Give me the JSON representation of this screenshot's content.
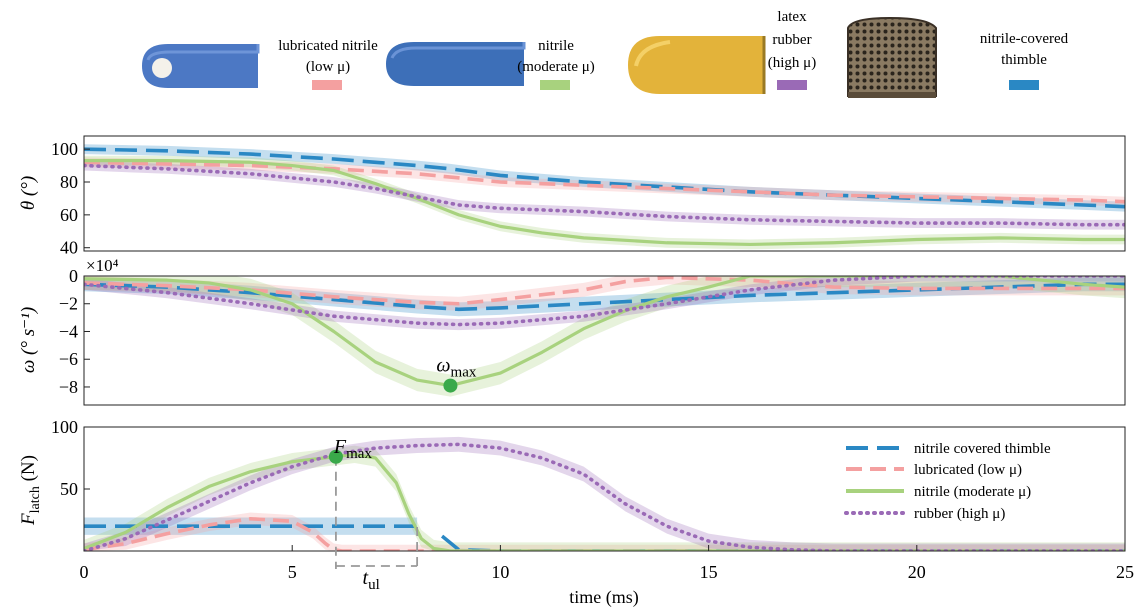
{
  "header": {
    "items": [
      {
        "line1": "lubricated nitrile",
        "line2": "(low μ)",
        "color": "#f4a0a0",
        "icon": "lubricated-nitrile-fingercot-icon"
      },
      {
        "line1": "nitrile",
        "line2": "(moderate μ)",
        "color": "#a8d27e",
        "icon": "nitrile-fingercot-icon"
      },
      {
        "line1": "latex",
        "line2": "rubber",
        "line3": "(high μ)",
        "color": "#9a6ab6",
        "icon": "latex-fingercot-icon"
      },
      {
        "line1": "nitrile-covered",
        "line2": "thimble",
        "color": "#2a88c4",
        "icon": "thimble-icon"
      }
    ]
  },
  "colors": {
    "thimble": "#2a88c4",
    "lubricated": "#f4a0a0",
    "nitrile": "#a8d27e",
    "rubber": "#9a6ab6"
  },
  "chart_data": [
    {
      "type": "line",
      "ylabel": "θ (°)",
      "xlim": [
        0,
        25
      ],
      "ylim": [
        38,
        108
      ],
      "yticks": [
        40,
        60,
        80,
        100
      ],
      "series": [
        {
          "key": "thimble",
          "x": [
            0,
            2,
            4,
            6,
            8,
            8.8,
            10,
            12,
            14,
            16,
            18,
            20,
            22,
            24,
            25
          ],
          "y": [
            100,
            99,
            97,
            94,
            90,
            88,
            84,
            80,
            77,
            74,
            72,
            70,
            68,
            66,
            65
          ],
          "band": 3
        },
        {
          "key": "lubricated",
          "x": [
            0,
            2,
            4,
            6,
            8,
            10,
            12,
            14,
            16,
            18,
            20,
            22,
            24,
            25
          ],
          "y": [
            92,
            91,
            90,
            88,
            85,
            80,
            78,
            76,
            74,
            72,
            71,
            70,
            69,
            68
          ],
          "band": 3
        },
        {
          "key": "nitrile",
          "x": [
            0,
            2,
            4,
            5,
            6,
            7,
            8,
            9,
            10,
            11,
            12,
            14,
            16,
            18,
            20,
            22,
            24,
            25
          ],
          "y": [
            93,
            93,
            92,
            90,
            87,
            79,
            70,
            60,
            53,
            49,
            46,
            43,
            42,
            43,
            45,
            46,
            45,
            45
          ],
          "band": 3
        },
        {
          "key": "rubber",
          "x": [
            0,
            2,
            4,
            6,
            7,
            8,
            9,
            10,
            11,
            12,
            14,
            16,
            18,
            20,
            22,
            24,
            25
          ],
          "y": [
            90,
            88,
            85,
            80,
            76,
            71,
            66,
            64,
            63,
            62,
            59,
            57,
            56,
            55,
            55,
            54,
            54
          ],
          "band": 3
        }
      ]
    },
    {
      "type": "line",
      "ylabel": "ω (° s⁻¹)",
      "scale_label": "×10⁴",
      "xlim": [
        0,
        25
      ],
      "ylim": [
        -9.3,
        0
      ],
      "yticks": [
        0,
        -2,
        -4,
        -6,
        -8
      ],
      "annotation": {
        "label": "ω",
        "sub": "max",
        "x": 8.8,
        "y": -7.9
      },
      "series": [
        {
          "key": "thimble",
          "x": [
            0,
            2,
            4,
            6,
            8,
            9,
            10,
            12,
            14,
            16,
            18,
            20,
            22,
            24,
            25
          ],
          "y": [
            -0.6,
            -0.8,
            -1.2,
            -1.7,
            -2.2,
            -2.4,
            -2.3,
            -2.0,
            -1.7,
            -1.4,
            -1.2,
            -1.0,
            -0.8,
            -0.6,
            -0.6
          ],
          "band": 0.5
        },
        {
          "key": "lubricated",
          "x": [
            0,
            2,
            4,
            6,
            8,
            9,
            10,
            12,
            13,
            14,
            16,
            18,
            20,
            22,
            24,
            25
          ],
          "y": [
            -0.5,
            -0.7,
            -1.0,
            -1.5,
            -1.9,
            -2.0,
            -1.7,
            -1.0,
            -0.4,
            -0.1,
            -0.3,
            -0.8,
            -0.9,
            -0.9,
            -0.9,
            -0.9
          ],
          "band": 0.5
        },
        {
          "key": "nitrile",
          "x": [
            0,
            2,
            3,
            4,
            5,
            6,
            7,
            8,
            8.8,
            10,
            11,
            12,
            13,
            14,
            15,
            16,
            18,
            20,
            22,
            24,
            25
          ],
          "y": [
            -0.2,
            -0.3,
            -0.5,
            -1.0,
            -2.0,
            -4.0,
            -6.2,
            -7.5,
            -7.9,
            -7.0,
            -5.5,
            -3.8,
            -2.5,
            -1.5,
            -0.8,
            0,
            0,
            0,
            0,
            -0.6,
            -0.8
          ],
          "band": 0.8
        },
        {
          "key": "rubber",
          "x": [
            0,
            2,
            4,
            6,
            8,
            9,
            10,
            12,
            14,
            16,
            18,
            20,
            22,
            24,
            25
          ],
          "y": [
            -0.6,
            -1.2,
            -2.0,
            -2.9,
            -3.4,
            -3.5,
            -3.4,
            -2.9,
            -2.0,
            -1.0,
            -0.3,
            0,
            0,
            0,
            0
          ],
          "band": 0.4
        }
      ]
    },
    {
      "type": "line",
      "ylabel": "F",
      "ylabel_sub": "latch",
      "ylabel_unit": " (N)",
      "xlabel": "time (ms)",
      "xlim": [
        0,
        25
      ],
      "ylim": [
        0,
        100
      ],
      "xticks": [
        0,
        5,
        10,
        15,
        20,
        25
      ],
      "yticks": [
        50,
        100
      ],
      "annotation": {
        "label": "F",
        "sub": "max",
        "x": 6.05,
        "y": 76
      },
      "interval": {
        "label": "t",
        "sub": "ul",
        "x0": 6.05,
        "x1": 8.0
      },
      "legend": [
        {
          "key": "thimble",
          "label": "nitrile covered thimble",
          "style": "dashed"
        },
        {
          "key": "lubricated",
          "label": "lubricated (low μ)",
          "style": "dashed"
        },
        {
          "key": "nitrile",
          "label": "nitrile (moderate μ)",
          "style": "solid"
        },
        {
          "key": "rubber",
          "label": "rubber (high μ)",
          "style": "dotted"
        }
      ],
      "series": [
        {
          "key": "thimble",
          "segments": [
            {
              "x": [
                0,
                1,
                2,
                3,
                4,
                5,
                6,
                7,
                8
              ],
              "y": [
                20,
                20,
                20,
                20,
                20,
                20,
                20,
                20,
                20
              ],
              "band": 7
            },
            {
              "x": [
                8.6,
                9,
                10,
                12,
                14,
                16,
                18,
                20,
                22,
                24,
                25
              ],
              "y": [
                12,
                1,
                0,
                0,
                0,
                0,
                0,
                0,
                0,
                0,
                0
              ],
              "band": 1
            }
          ]
        },
        {
          "key": "lubricated",
          "segments": [
            {
              "x": [
                0,
                1,
                2,
                3,
                4,
                5,
                5.5,
                5.8,
                6.0,
                6.2,
                7,
                8,
                10,
                12,
                14,
                16,
                18,
                20,
                22,
                24,
                25
              ],
              "y": [
                1,
                6,
                14,
                21,
                26,
                24,
                15,
                6,
                1,
                0,
                0,
                0,
                0,
                0,
                0,
                0,
                0,
                0,
                0,
                0,
                0
              ],
              "band": 5
            }
          ]
        },
        {
          "key": "nitrile",
          "segments": [
            {
              "x": [
                0,
                1,
                2,
                3,
                4,
                5,
                6,
                6.5,
                7,
                7.5,
                7.8,
                8.1,
                8.4,
                8.8,
                9,
                10,
                12,
                14,
                16,
                18,
                20,
                22,
                24,
                25
              ],
              "y": [
                2,
                15,
                35,
                52,
                64,
                72,
                76,
                78,
                75,
                55,
                30,
                10,
                2,
                0,
                0,
                0,
                0,
                0,
                0,
                0,
                0,
                0,
                0,
                0
              ],
              "band": 7
            }
          ]
        },
        {
          "key": "rubber",
          "segments": [
            {
              "x": [
                0,
                1,
                2,
                3,
                4,
                5,
                6,
                7,
                8,
                9,
                10,
                11,
                12,
                12.5,
                13,
                14,
                15,
                16,
                17,
                18,
                20,
                22,
                24,
                25
              ],
              "y": [
                0,
                10,
                25,
                40,
                55,
                68,
                78,
                83,
                85,
                86,
                83,
                75,
                62,
                50,
                38,
                20,
                8,
                3,
                1,
                0,
                0,
                0,
                0,
                0
              ],
              "band": 6
            }
          ]
        }
      ]
    }
  ]
}
